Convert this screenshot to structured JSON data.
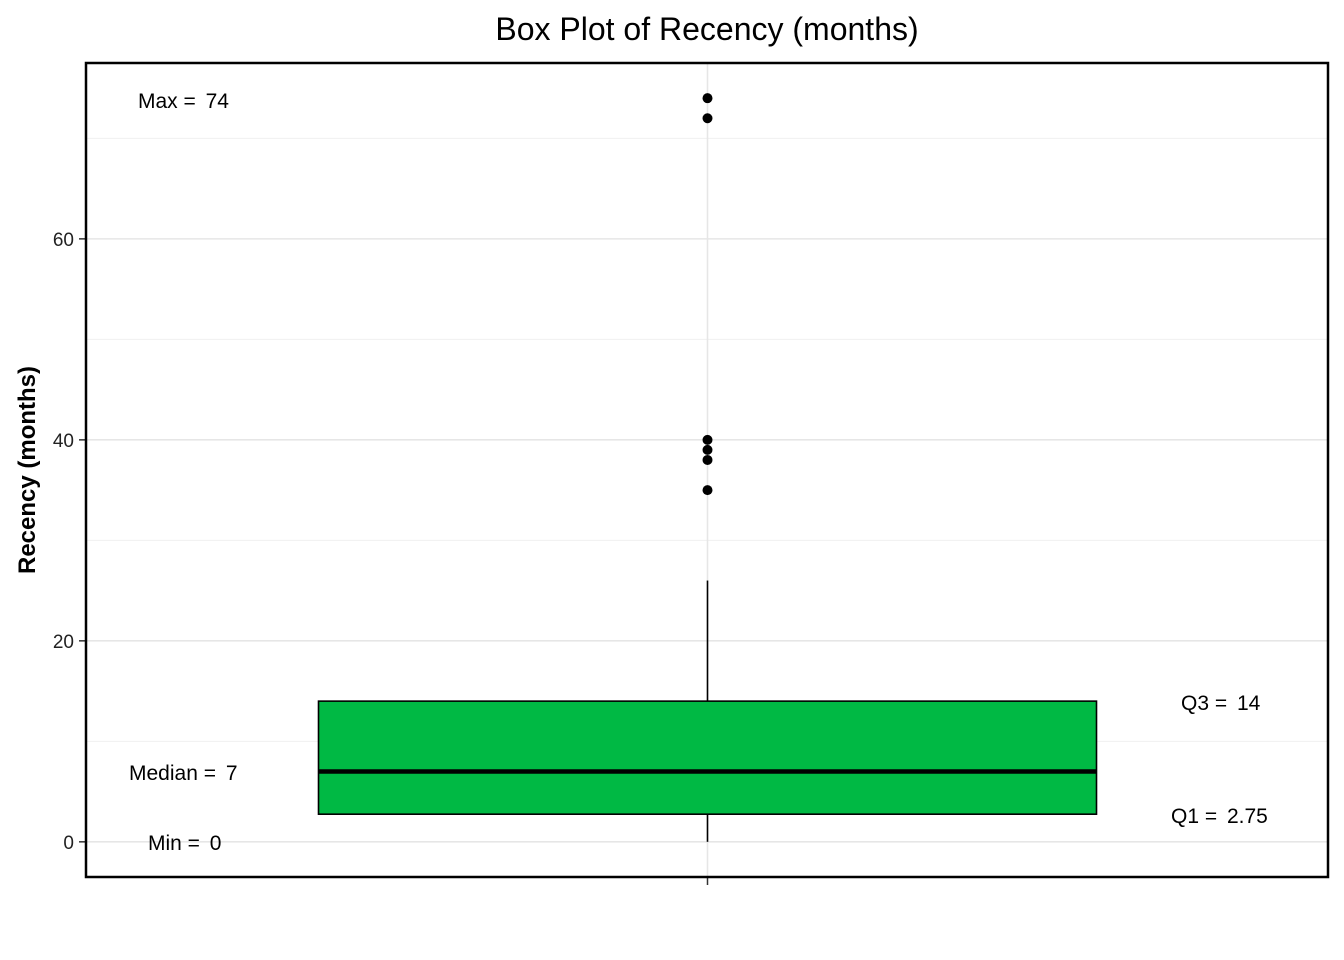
{
  "chart_data": {
    "type": "box",
    "title": "Box Plot of Recency (months)",
    "xlabel": "",
    "ylabel": "Recency (months)",
    "ylim": [
      -3.5,
      77.5
    ],
    "y_ticks": [
      0,
      20,
      40,
      60
    ],
    "grid": true,
    "box": {
      "fill_color": "#00b944",
      "min": 0,
      "q1": 2.75,
      "median": 7,
      "q3": 14,
      "whisker_high": 26,
      "max": 74,
      "outliers": [
        35,
        38,
        39,
        40,
        72,
        74
      ]
    },
    "annotations": {
      "max_label": "Max = ",
      "max_value": "74",
      "median_label": "Median = ",
      "median_value": "7",
      "min_label": "Min = ",
      "min_value": "0",
      "q3_label": "Q3 = ",
      "q3_value": "14",
      "q1_label": "Q1 = ",
      "q1_value": "2.75"
    }
  }
}
